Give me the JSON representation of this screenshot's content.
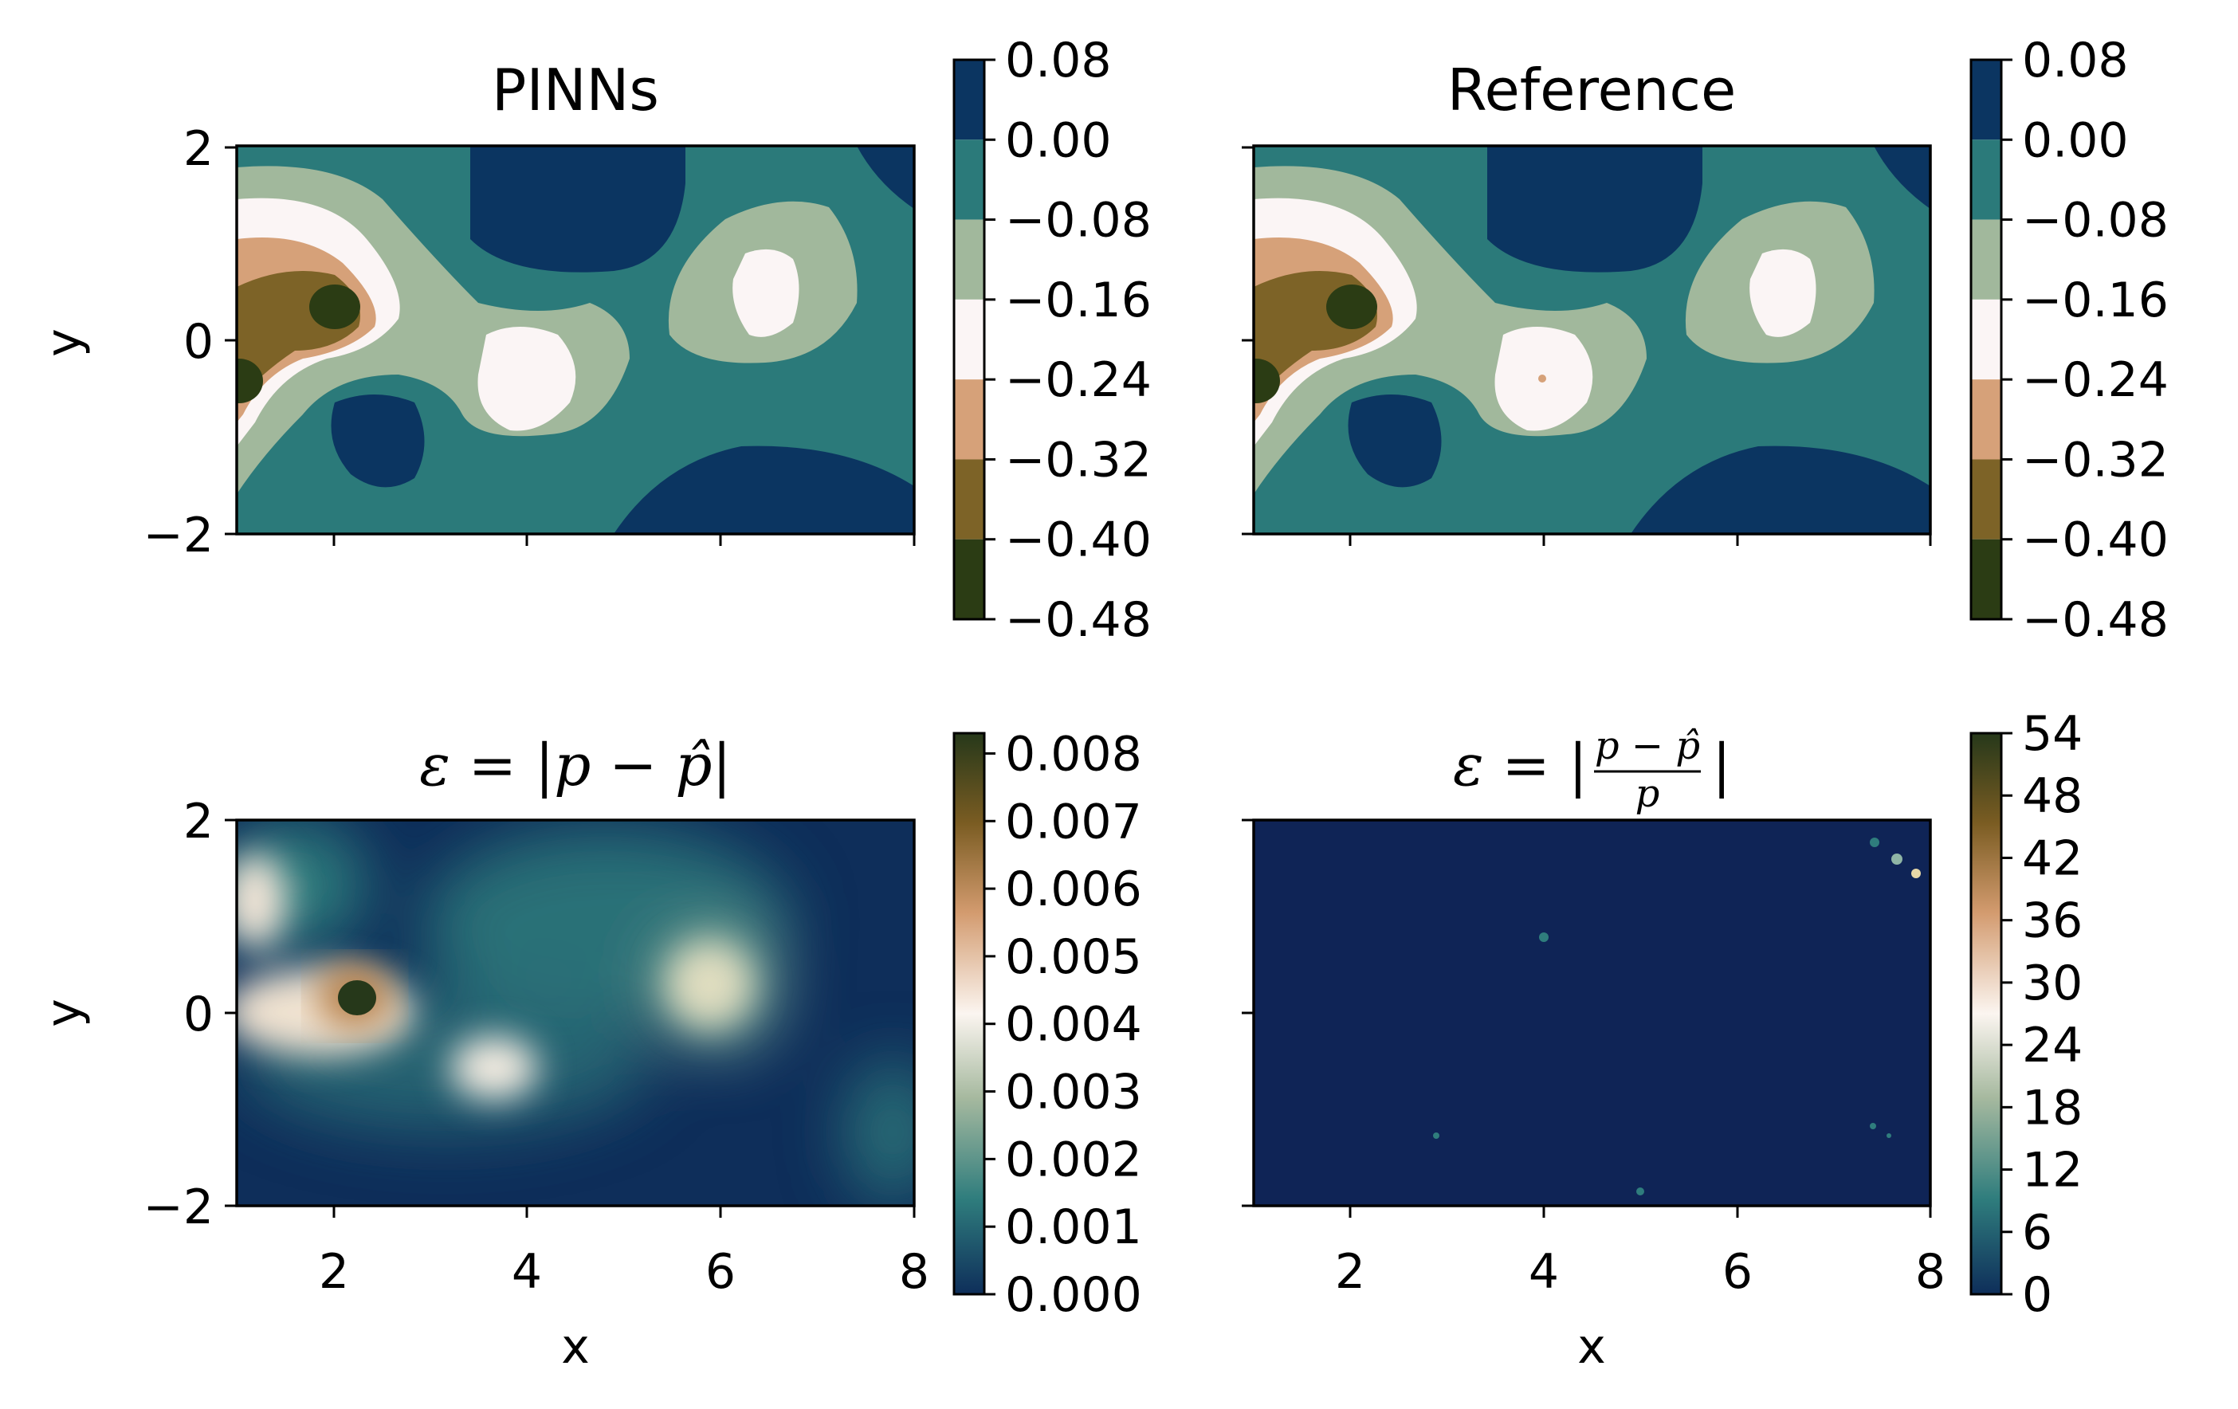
{
  "chart_data": [
    {
      "type": "heatmap",
      "id": "pinns",
      "title": "PINNs",
      "ylabel": "y",
      "xlabel": "",
      "xlim": [
        1,
        8
      ],
      "ylim": [
        -2,
        2
      ],
      "yticks": [
        "2",
        "0",
        "−2"
      ],
      "xticks": [],
      "field": "pressure",
      "colorbar": {
        "ticks": [
          "0.08",
          "0.00",
          "−0.08",
          "−0.16",
          "−0.24",
          "−0.32",
          "−0.40",
          "−0.48"
        ],
        "values": [
          0.08,
          0.0,
          -0.08,
          -0.16,
          -0.24,
          -0.32,
          -0.4,
          -0.48
        ],
        "colors": [
          "#0b3561",
          "#2b7a7a",
          "#a1b89c",
          "#fbf5f5",
          "#d6a179",
          "#7d6327",
          "#2b3c14"
        ],
        "discrete": true
      }
    },
    {
      "type": "heatmap",
      "id": "reference",
      "title": "Reference",
      "ylabel": "",
      "xlabel": "",
      "xlim": [
        1,
        8
      ],
      "ylim": [
        -2,
        2
      ],
      "yticks": [],
      "xticks": [],
      "field": "pressure",
      "colorbar": {
        "ticks": [
          "0.08",
          "0.00",
          "−0.08",
          "−0.16",
          "−0.24",
          "−0.32",
          "−0.40",
          "−0.48"
        ],
        "values": [
          0.08,
          0.0,
          -0.08,
          -0.16,
          -0.24,
          -0.32,
          -0.4,
          -0.48
        ],
        "colors": [
          "#0b3561",
          "#2b7a7a",
          "#a1b89c",
          "#fbf5f5",
          "#d6a179",
          "#7d6327",
          "#2b3c14"
        ],
        "discrete": true
      }
    },
    {
      "type": "heatmap",
      "id": "abs-error",
      "title_parts": [
        "ε = |p − ",
        "p̂",
        "|"
      ],
      "ylabel": "y",
      "xlabel": "x",
      "xlim": [
        1,
        8
      ],
      "ylim": [
        -2,
        2
      ],
      "yticks": [
        "2",
        "0",
        "−2"
      ],
      "xticks": [
        "2",
        "4",
        "6",
        "8"
      ],
      "field": "absolute_error",
      "colorbar": {
        "ticks": [
          "0.008",
          "0.007",
          "0.006",
          "0.005",
          "0.004",
          "0.003",
          "0.002",
          "0.001",
          "0.000"
        ],
        "range": [
          0,
          0.0083
        ],
        "gradient": [
          "#0e2e5a",
          "#2f7d7d",
          "#a6b99f",
          "#fbf5f0",
          "#d39b6f",
          "#7a5c22",
          "#26381a"
        ]
      }
    },
    {
      "type": "heatmap",
      "id": "rel-error",
      "title_parts": [
        "ε = |",
        "p − p̂",
        "p",
        "|"
      ],
      "ylabel": "",
      "xlabel": "x",
      "xlim": [
        1,
        8
      ],
      "ylim": [
        -2,
        2
      ],
      "yticks": [],
      "xticks": [
        "2",
        "4",
        "6",
        "8"
      ],
      "field": "relative_error",
      "colorbar": {
        "ticks": [
          "54",
          "48",
          "42",
          "36",
          "30",
          "24",
          "18",
          "12",
          "6",
          "0"
        ],
        "range": [
          0,
          54
        ],
        "gradient": [
          "#0e2e5a",
          "#2f7d7d",
          "#a6b99f",
          "#fbf5f0",
          "#d39b6f",
          "#7a5c22",
          "#26381a"
        ]
      }
    }
  ]
}
